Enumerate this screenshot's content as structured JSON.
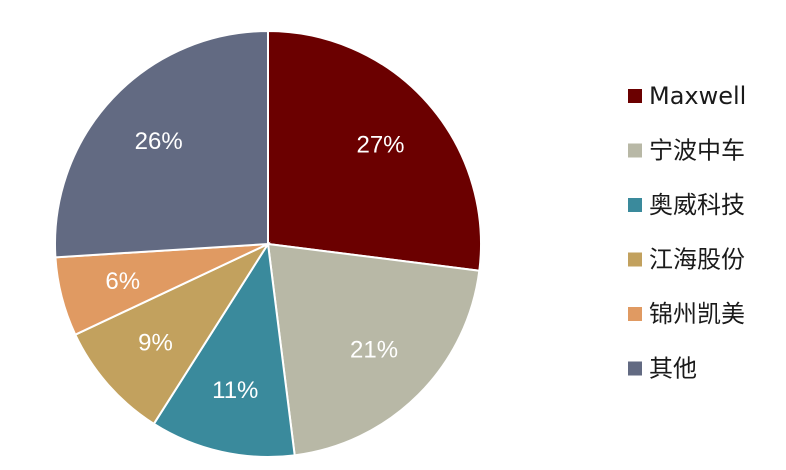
{
  "chart_data": {
    "type": "pie",
    "title": "",
    "legend_position": "right",
    "unit": "%",
    "slices": [
      {
        "label": "Maxwell",
        "value": 27,
        "display": "27%",
        "color": "#6b0000"
      },
      {
        "label": "宁波中车",
        "value": 21,
        "display": "21%",
        "color": "#b8b8a6"
      },
      {
        "label": "奥威科技",
        "value": 11,
        "display": "11%",
        "color": "#3a8a9c"
      },
      {
        "label": "江海股份",
        "value": 9,
        "display": "9%",
        "color": "#c2a15e"
      },
      {
        "label": "锦州凯美",
        "value": 6,
        "display": "6%",
        "color": "#e09a62"
      },
      {
        "label": "其他",
        "value": 26,
        "display": "26%",
        "color": "#626a82"
      }
    ]
  }
}
